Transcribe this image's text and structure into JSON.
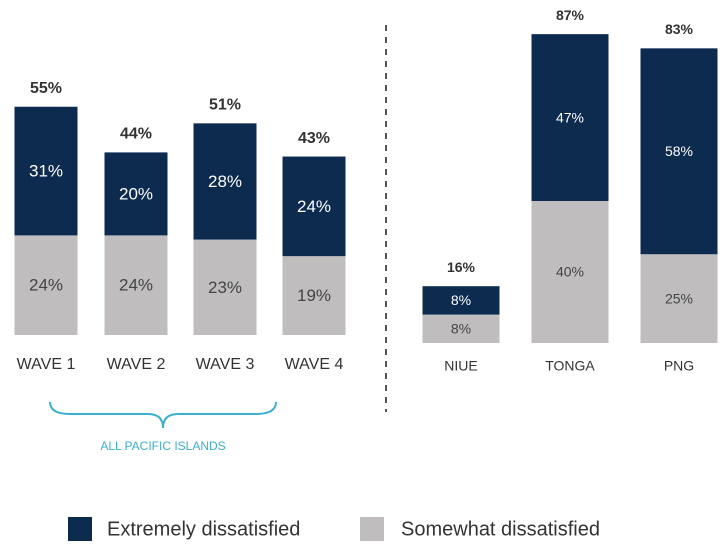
{
  "chart_data": [
    {
      "type": "stacked_bar",
      "categories": [
        "WAVE 1",
        "WAVE 2",
        "WAVE 3",
        "WAVE 4"
      ],
      "series": [
        {
          "name": "Extremely dissatisfied",
          "color": "#0d2a4f",
          "values": [
            31,
            20,
            28,
            24
          ],
          "value_labels": [
            "31%",
            "20%",
            "28%",
            "24%"
          ]
        },
        {
          "name": "Somewhat dissatisfied",
          "color": "#bfbdbd",
          "values": [
            24,
            24,
            23,
            19
          ],
          "value_labels": [
            "24%",
            "24%",
            "23%",
            "19%"
          ]
        }
      ],
      "totals": [
        55,
        44,
        51,
        43
      ],
      "total_labels": [
        "55%",
        "44%",
        "51%",
        "43%"
      ],
      "annotation": "ALL PACIFIC ISLANDS",
      "ylim": [
        0,
        60
      ]
    },
    {
      "type": "stacked_bar",
      "categories": [
        "NIUE",
        "TONGA",
        "PNG"
      ],
      "series": [
        {
          "color": "#0d2a4f",
          "values": [
            8,
            47,
            58
          ],
          "value_labels": [
            "8%",
            "47%",
            "58%"
          ]
        },
        {
          "color": "#bfbdbd",
          "values": [
            8,
            40,
            25
          ],
          "value_labels": [
            "8%",
            "40%",
            "25%"
          ]
        }
      ],
      "totals": [
        16,
        87,
        83
      ],
      "total_labels": [
        "16%",
        "87%",
        "83%"
      ],
      "ylim": [
        0,
        90
      ]
    }
  ]
}
